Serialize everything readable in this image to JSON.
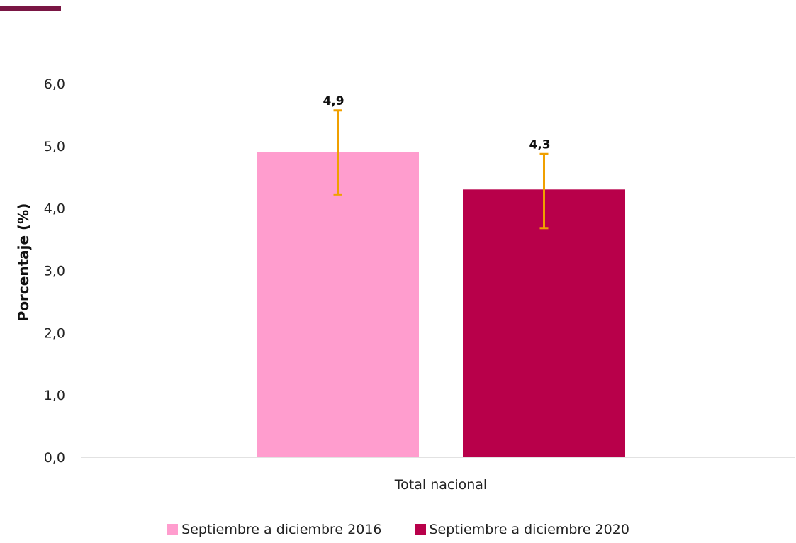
{
  "chart_data": {
    "type": "bar",
    "categories": [
      "Total nacional"
    ],
    "series": [
      {
        "name": "Septiembre a diciembre 2016",
        "values": [
          4.9
        ],
        "error_low": [
          4.22
        ],
        "error_high": [
          5.57
        ],
        "color": "#ff9dce"
      },
      {
        "name": "Septiembre a diciembre 2020",
        "values": [
          4.3
        ],
        "error_low": [
          3.68
        ],
        "error_high": [
          4.87
        ],
        "color": "#b8004a"
      }
    ],
    "data_labels": [
      "4,9",
      "4,3"
    ],
    "ylabel": "Porcentaje (%)",
    "ylim": [
      0,
      6
    ],
    "yticks": [
      0,
      1,
      2,
      3,
      4,
      5,
      6
    ],
    "ytick_labels": [
      "0,0",
      "1,0",
      "2,0",
      "3,0",
      "4,0",
      "5,0",
      "6,0"
    ],
    "grid": false,
    "legend_position": "bottom",
    "error_bar_color": "#f0a000",
    "accent_color": "#7a1644"
  }
}
